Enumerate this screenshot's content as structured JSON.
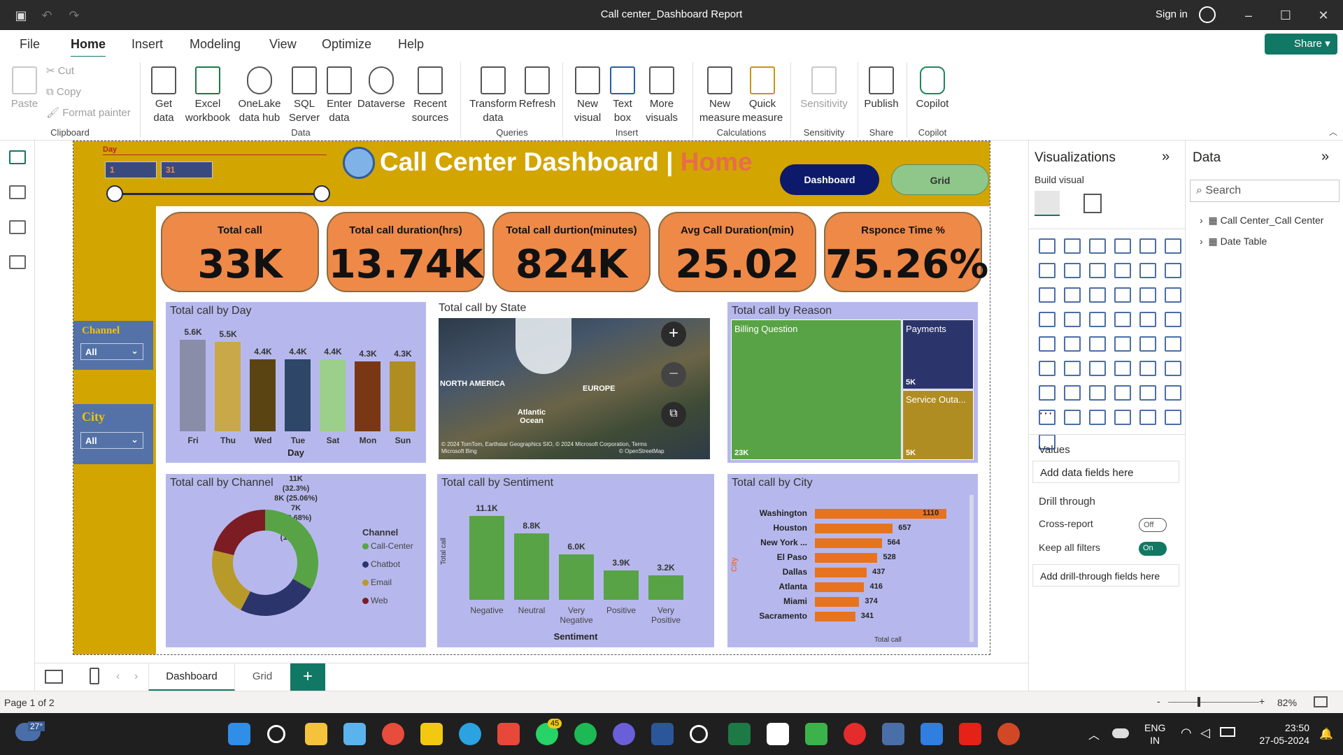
{
  "window": {
    "title": "Call center_Dashboard Report",
    "sign_in": "Sign in"
  },
  "menu": {
    "items": [
      "File",
      "Home",
      "Insert",
      "Modeling",
      "View",
      "Optimize",
      "Help"
    ],
    "active": "Home",
    "share": "Share"
  },
  "ribbon": {
    "clipboard": {
      "paste": "Paste",
      "cut": "Cut",
      "copy": "Copy",
      "format_painter": "Format painter",
      "group": "Clipboard"
    },
    "data": {
      "get_data": "Get data",
      "excel": "Excel workbook",
      "onelake": "OneLake data hub",
      "sql": "SQL Server",
      "enter": "Enter data",
      "dataverse": "Dataverse",
      "recent": "Recent sources",
      "group": "Data"
    },
    "queries": {
      "transform": "Transform data",
      "refresh": "Refresh",
      "group": "Queries"
    },
    "insert": {
      "new_visual": "New visual",
      "text_box": "Text box",
      "more_visuals": "More visuals",
      "group": "Insert"
    },
    "calculations": {
      "new_measure": "New measure",
      "quick_measure": "Quick measure",
      "group": "Calculations"
    },
    "sensitivity": {
      "label": "Sensitivity",
      "group": "Sensitivity"
    },
    "share": {
      "publish": "Publish",
      "group": "Share"
    },
    "copilot": {
      "label": "Copilot",
      "group": "Copilot"
    }
  },
  "report": {
    "title": "Call Center Dashboard |",
    "title_page": "Home",
    "nav_dashboard": "Dashboard",
    "nav_grid": "Grid",
    "day_slicer": {
      "label": "Day",
      "from": "1",
      "to": "31"
    },
    "channel_slicer": {
      "label": "Channel",
      "value": "All"
    },
    "city_slicer": {
      "label": "City",
      "value": "All"
    },
    "kpis": [
      {
        "label": "Total call",
        "value": "33K"
      },
      {
        "label": "Total call duration(hrs)",
        "value": "13.74K"
      },
      {
        "label": "Total call durtion(minutes)",
        "value": "824K"
      },
      {
        "label": "Avg Call Duration(min)",
        "value": "25.02"
      },
      {
        "label": "Rsponce Time %",
        "value": "75.26%"
      }
    ],
    "map": {
      "title": "Total call by State",
      "na": "NORTH AMERICA",
      "europe": "EUROPE",
      "atlantic": "Atlantic Ocean",
      "credits": "© 2024 TomTom, Earthstar Geographics SIO, © 2024 Microsoft Corporation, Terms",
      "osm": "© OpenStreetMap",
      "bing": "Microsoft Bing"
    },
    "treemap": {
      "title": "Total call by Reason",
      "items": [
        {
          "label": "Billing Question",
          "value": "23K"
        },
        {
          "label": "Payments",
          "value": "5K"
        },
        {
          "label": "Service Outa...",
          "value": "5K"
        }
      ]
    }
  },
  "chart_data": [
    {
      "type": "bar",
      "title": "Total call by Day",
      "xlabel": "Day",
      "ylabel": "",
      "categories": [
        "Fri",
        "Thu",
        "Wed",
        "Tue",
        "Sat",
        "Mon",
        "Sun"
      ],
      "values": [
        5600,
        5500,
        4400,
        4400,
        4400,
        4300,
        4300
      ],
      "labels": [
        "5.6K",
        "5.5K",
        "4.4K",
        "4.4K",
        "4.4K",
        "4.3K",
        "4.3K"
      ],
      "colors": [
        "#8a8da8",
        "#c9a84a",
        "#5a4512",
        "#2e4667",
        "#9bcf8a",
        "#7a3714",
        "#b08d22"
      ]
    },
    {
      "type": "pie",
      "title": "Total call by Channel",
      "legend_title": "Channel",
      "categories": [
        "Call-Center",
        "Chatbot",
        "Email",
        "Web"
      ],
      "values": [
        11000,
        8000,
        7000,
        7000
      ],
      "labels": [
        "11K\n(32.3%)",
        "8K (25.06%)",
        "7K\n(22.68%)",
        "7K\n(19.96%)"
      ],
      "colors": [
        "#58a345",
        "#2c356b",
        "#b89a2a",
        "#7c1d24"
      ]
    },
    {
      "type": "bar",
      "title": "Total call by Sentiment",
      "xlabel": "Sentiment",
      "ylabel": "Total call",
      "categories": [
        "Negative",
        "Neutral",
        "Very Negative",
        "Positive",
        "Very Positive"
      ],
      "values": [
        11100,
        8800,
        6000,
        3900,
        3200
      ],
      "labels": [
        "11.1K",
        "8.8K",
        "6.0K",
        "3.9K",
        "3.2K"
      ],
      "color": "#58a345"
    },
    {
      "type": "bar",
      "orientation": "horizontal",
      "title": "Total call by City",
      "xlabel": "Total call",
      "ylabel": "City",
      "categories": [
        "Washington",
        "Houston",
        "New York ...",
        "El Paso",
        "Dallas",
        "Atlanta",
        "Miami",
        "Sacramento"
      ],
      "values": [
        1110,
        657,
        564,
        528,
        437,
        416,
        374,
        341
      ],
      "color": "#e8731e"
    }
  ],
  "viz_pane": {
    "title": "Visualizations",
    "build": "Build visual",
    "values": "Values",
    "add_data": "Add data fields here",
    "drill": "Drill through",
    "cross": "Cross-report",
    "cross_state": "Off",
    "keep": "Keep all filters",
    "keep_state": "On",
    "add_drill": "Add drill-through fields here"
  },
  "data_pane": {
    "title": "Data",
    "search": "Search",
    "tables": [
      "Call Center_Call Center",
      "Date Table"
    ]
  },
  "pages": {
    "tabs": [
      "Dashboard",
      "Grid"
    ],
    "status": "Page 1 of 2",
    "zoom": "82%"
  },
  "taskbar": {
    "temp": "27°",
    "lang": "ENG",
    "region": "IN",
    "time": "23:50",
    "date": "27-05-2024",
    "badge": "45"
  }
}
